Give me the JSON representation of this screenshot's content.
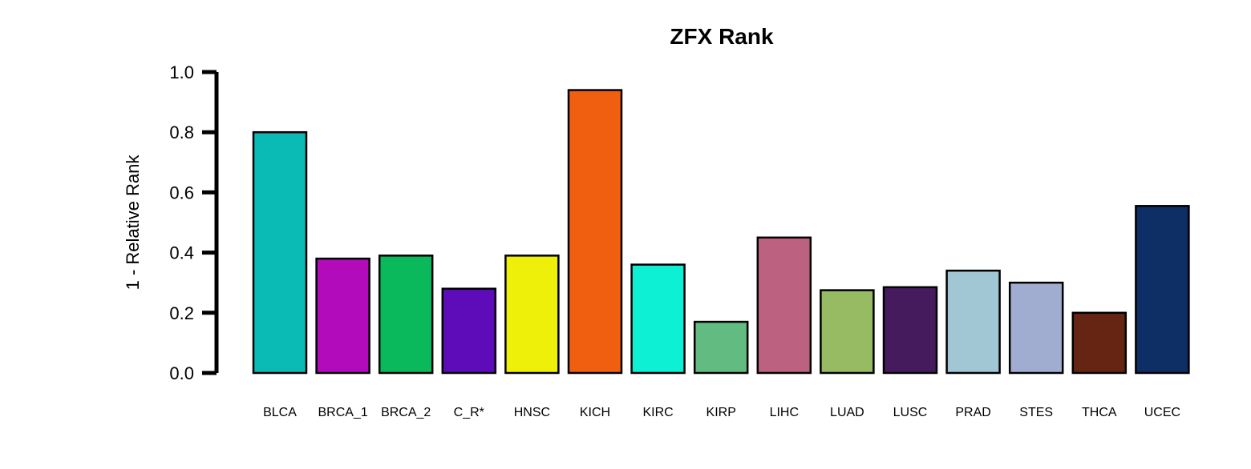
{
  "chart_data": {
    "type": "bar",
    "title": "ZFX Rank",
    "xlabel": "",
    "ylabel": "1 - Relative Rank",
    "ylim": [
      0,
      1
    ],
    "yticks": [
      "0.0",
      "0.2",
      "0.4",
      "0.6",
      "0.8",
      "1.0"
    ],
    "grid": false,
    "categories": [
      "BLCA",
      "BRCA_1",
      "BRCA_2",
      "C_R*",
      "HNSC",
      "KICH",
      "KIRC",
      "KIRP",
      "LIHC",
      "LUAD",
      "LUSC",
      "PRAD",
      "STES",
      "THCA",
      "UCEC"
    ],
    "values": [
      0.8,
      0.38,
      0.39,
      0.28,
      0.39,
      0.94,
      0.36,
      0.17,
      0.45,
      0.275,
      0.285,
      0.34,
      0.3,
      0.2,
      0.555
    ],
    "colors": [
      "#0abab5",
      "#b20bbb",
      "#0ab95c",
      "#5e0bb9",
      "#eef00a",
      "#f05f0f",
      "#0df0d3",
      "#62bb80",
      "#bd6181",
      "#97bb63",
      "#461b5e",
      "#a1c6d4",
      "#a0add1",
      "#652512",
      "#0e2f66"
    ]
  }
}
